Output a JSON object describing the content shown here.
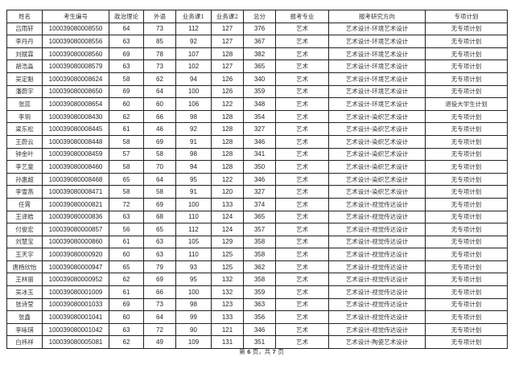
{
  "headers": [
    "姓名",
    "考生编号",
    "政治理论",
    "外语",
    "业务课1",
    "业务课2",
    "总分",
    "报考专业",
    "报考研究方向",
    "专项计划"
  ],
  "rows": [
    [
      "吕雨轩",
      "100039080008550",
      "64",
      "73",
      "112",
      "127",
      "376",
      "艺术",
      "艺术设计-环境艺术设计",
      "无专项计划"
    ],
    [
      "李丹丹",
      "100039080008556",
      "63",
      "85",
      "92",
      "127",
      "367",
      "艺术",
      "艺术设计-环境艺术设计",
      "无专项计划"
    ],
    [
      "刘赋霖",
      "100039080008560",
      "69",
      "78",
      "107",
      "128",
      "382",
      "艺术",
      "艺术设计-环境艺术设计",
      "无专项计划"
    ],
    [
      "胡浩淼",
      "100039080008579",
      "63",
      "73",
      "102",
      "127",
      "365",
      "艺术",
      "艺术设计-环境艺术设计",
      "无专项计划"
    ],
    [
      "吴定魁",
      "100039080008624",
      "58",
      "62",
      "94",
      "126",
      "340",
      "艺术",
      "艺术设计-环境艺术设计",
      "无专项计划"
    ],
    [
      "潘蔚宇",
      "100039080008650",
      "69",
      "64",
      "100",
      "126",
      "359",
      "艺术",
      "艺术设计-环境艺术设计",
      "无专项计划"
    ],
    [
      "张蕊",
      "100039080008654",
      "60",
      "60",
      "106",
      "122",
      "348",
      "艺术",
      "艺术设计-环境艺术设计",
      "退役大学生计划"
    ],
    [
      "李玥",
      "100039080008430",
      "62",
      "66",
      "98",
      "128",
      "354",
      "艺术",
      "艺术设计-染织艺术设计",
      "无专项计划"
    ],
    [
      "梁东松",
      "100039080008445",
      "61",
      "46",
      "92",
      "128",
      "327",
      "艺术",
      "艺术设计-染织艺术设计",
      "无专项计划"
    ],
    [
      "王蔚云",
      "100039080008448",
      "58",
      "69",
      "91",
      "128",
      "346",
      "艺术",
      "艺术设计-染织艺术设计",
      "无专项计划"
    ],
    [
      "钟金叶",
      "100039080008459",
      "57",
      "58",
      "98",
      "128",
      "341",
      "艺术",
      "艺术设计-染织艺术设计",
      "无专项计划"
    ],
    [
      "李艺斐",
      "100039080008460",
      "58",
      "70",
      "94",
      "128",
      "350",
      "艺术",
      "艺术设计-染织艺术设计",
      "无专项计划"
    ],
    [
      "孙惠超",
      "100039080008468",
      "65",
      "64",
      "95",
      "122",
      "346",
      "艺术",
      "艺术设计-染织艺术设计",
      "无专项计划"
    ],
    [
      "李雪燕",
      "100039080008471",
      "58",
      "58",
      "91",
      "120",
      "327",
      "艺术",
      "艺术设计-染织艺术设计",
      "无专项计划"
    ],
    [
      "任霄",
      "100039080000821",
      "72",
      "69",
      "100",
      "133",
      "374",
      "艺术",
      "艺术设计-视觉传达设计",
      "无专项计划"
    ],
    [
      "王译皓",
      "100039080000836",
      "63",
      "68",
      "110",
      "124",
      "365",
      "艺术",
      "艺术设计-视觉传达设计",
      "无专项计划"
    ],
    [
      "付俊宏",
      "100039080000857",
      "56",
      "65",
      "112",
      "124",
      "357",
      "艺术",
      "艺术设计-视觉传达设计",
      "无专项计划"
    ],
    [
      "刘慧宝",
      "100039080000860",
      "61",
      "63",
      "105",
      "129",
      "358",
      "艺术",
      "艺术设计-视觉传达设计",
      "无专项计划"
    ],
    [
      "王天宇",
      "100039080000920",
      "60",
      "63",
      "110",
      "125",
      "358",
      "艺术",
      "艺术设计-视觉传达设计",
      "无专项计划"
    ],
    [
      "唐杨欣怡",
      "100039080000947",
      "65",
      "79",
      "93",
      "125",
      "362",
      "艺术",
      "艺术设计-视觉传达设计",
      "无专项计划"
    ],
    [
      "王林丽",
      "100039080000952",
      "62",
      "69",
      "95",
      "132",
      "358",
      "艺术",
      "艺术设计-视觉传达设计",
      "无专项计划"
    ],
    [
      "吴冰玉",
      "100039080001009",
      "61",
      "66",
      "100",
      "132",
      "359",
      "艺术",
      "艺术设计-视觉传达设计",
      "无专项计划"
    ],
    [
      "张诗莹",
      "100039080001033",
      "69",
      "73",
      "98",
      "123",
      "363",
      "艺术",
      "艺术设计-视觉传达设计",
      "无专项计划"
    ],
    [
      "张鑫",
      "100039080001041",
      "60",
      "64",
      "99",
      "133",
      "356",
      "艺术",
      "艺术设计-视觉传达设计",
      "无专项计划"
    ],
    [
      "李咏琪",
      "100039080001042",
      "63",
      "72",
      "90",
      "121",
      "346",
      "艺术",
      "艺术设计-视觉传达设计",
      "无专项计划"
    ],
    [
      "白祎祥",
      "100039080005081",
      "62",
      "49",
      "109",
      "131",
      "351",
      "艺术",
      "艺术设计-陶瓷艺术设计",
      "无专项计划"
    ]
  ],
  "footer": {
    "prefix": "第",
    "page": "6",
    "middle": "页，共",
    "total": "7",
    "suffix": "页"
  }
}
